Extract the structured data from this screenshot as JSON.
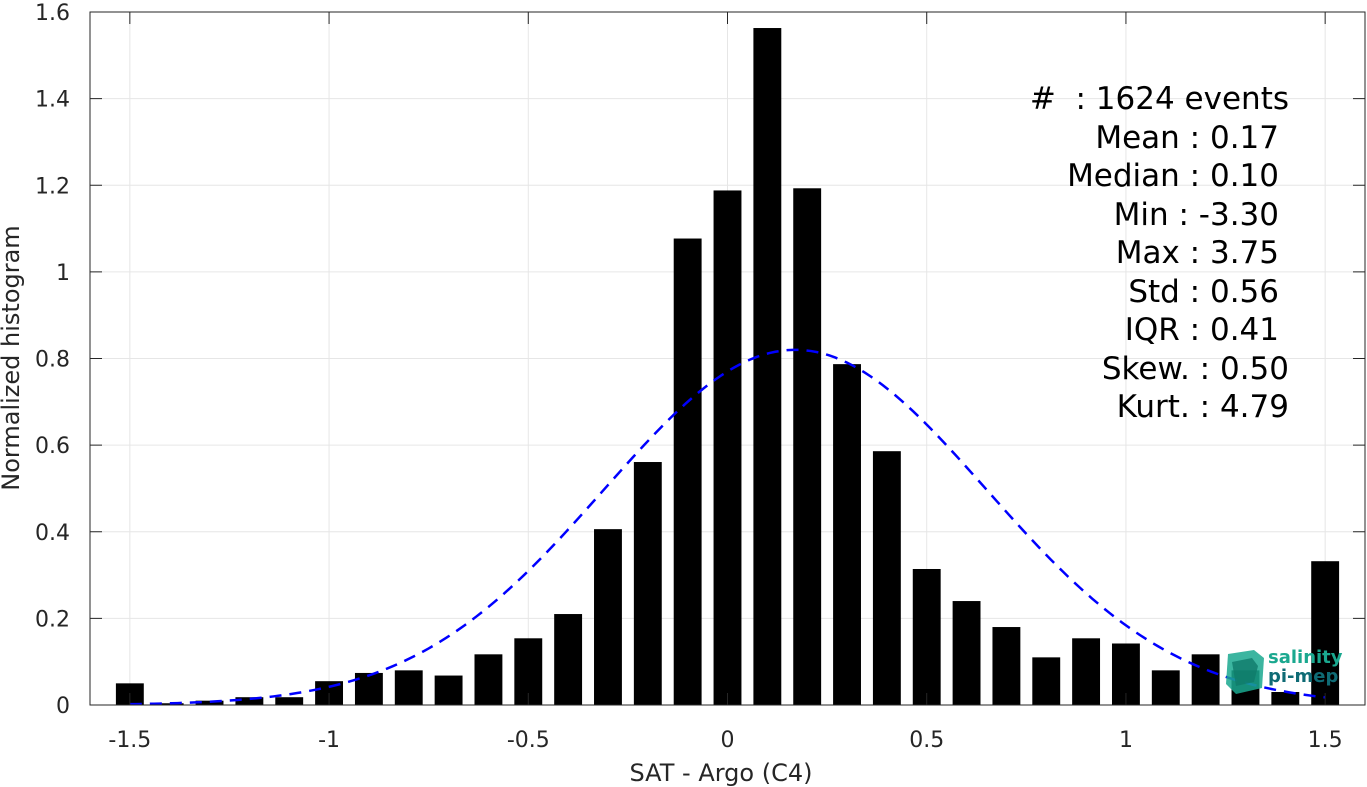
{
  "chart_data": {
    "type": "bar",
    "xlabel": "SAT - Argo (C4)",
    "ylabel": "Normalized histogram",
    "xlim": [
      -1.6,
      1.6
    ],
    "ylim": [
      0,
      1.6
    ],
    "xticks": [
      "-1.5",
      "-1",
      "-0.5",
      "0",
      "0.5",
      "1",
      "1.5"
    ],
    "xtick_values": [
      -1.5,
      -1,
      -0.5,
      0,
      0.5,
      1,
      1.5
    ],
    "yticks": [
      "0",
      "0.2",
      "0.4",
      "0.6",
      "0.8",
      "1",
      "1.2",
      "1.4",
      "1.6"
    ],
    "ytick_values": [
      0,
      0.2,
      0.4,
      0.6,
      0.8,
      1.0,
      1.2,
      1.4,
      1.6
    ],
    "grid": true,
    "bar_color": "#000000",
    "bin_width": 0.1,
    "series": [
      {
        "x": [
          -1.5,
          -1.4,
          -1.3,
          -1.2,
          -1.1,
          -1.0,
          -0.9,
          -0.8,
          -0.7,
          -0.6,
          -0.5,
          -0.4,
          -0.3,
          -0.2,
          -0.1,
          0.0,
          0.1,
          0.2,
          0.3,
          0.4,
          0.5,
          0.6,
          0.7,
          0.8,
          0.9,
          1.0,
          1.1,
          1.2,
          1.3,
          1.4,
          1.5
        ],
        "values": [
          0.05,
          0.004,
          0.01,
          0.018,
          0.018,
          0.055,
          0.074,
          0.08,
          0.068,
          0.117,
          0.154,
          0.21,
          0.406,
          0.561,
          1.077,
          1.188,
          1.563,
          1.193,
          0.787,
          0.586,
          0.314,
          0.24,
          0.18,
          0.11,
          0.154,
          0.142,
          0.08,
          0.117,
          0.08,
          0.03,
          0.332
        ]
      }
    ],
    "fit_curve": {
      "type": "normal",
      "mean": 0.17,
      "std": 0.48,
      "peak": 0.82,
      "x_range": [
        -1.5,
        1.5
      ],
      "color": "#0000ff",
      "style": "dashed"
    }
  },
  "stats": [
    "#  : 1624 events",
    "Mean : 0.17",
    "Median : 0.10",
    "Min : -3.30",
    "Max : 3.75",
    "Std : 0.56",
    "IQR : 0.41",
    "Skew. : 0.50",
    "Kurt. : 4.79"
  ],
  "logo": {
    "line1": "salinity",
    "line2": "pi-mep",
    "color": "#1aa88f"
  }
}
